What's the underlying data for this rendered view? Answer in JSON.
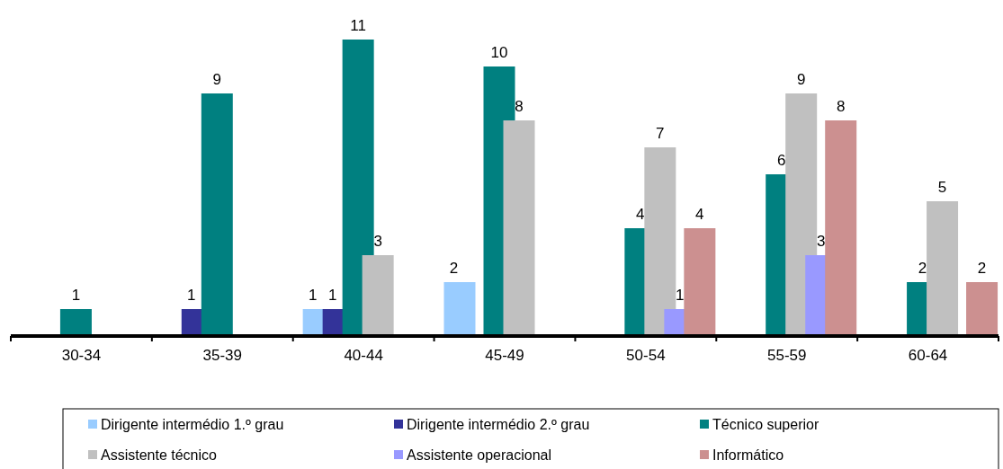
{
  "chart_data": {
    "type": "bar",
    "categories": [
      "30-34",
      "35-39",
      "40-44",
      "45-49",
      "50-54",
      "55-59",
      "60-64"
    ],
    "series": [
      {
        "name": "Dirigente intermédio 1.º grau",
        "color": "#99ccff",
        "values": [
          null,
          null,
          1,
          2,
          null,
          null,
          null
        ]
      },
      {
        "name": "Dirigente intermédio 2.º grau",
        "color": "#333399",
        "values": [
          null,
          1,
          1,
          null,
          null,
          null,
          null
        ]
      },
      {
        "name": "Técnico superior",
        "color": "#008080",
        "values": [
          1,
          9,
          11,
          10,
          4,
          6,
          2
        ]
      },
      {
        "name": "Assistente técnico",
        "color": "#c0c0c0",
        "values": [
          null,
          null,
          3,
          8,
          7,
          9,
          5
        ]
      },
      {
        "name": "Assistente operacional",
        "color": "#9999ff",
        "values": [
          null,
          null,
          null,
          null,
          1,
          3,
          null
        ]
      },
      {
        "name": "Informático",
        "color": "#cc9090",
        "values": [
          null,
          null,
          null,
          null,
          4,
          8,
          2
        ]
      }
    ],
    "data_labels": true,
    "legend": "bottom"
  }
}
